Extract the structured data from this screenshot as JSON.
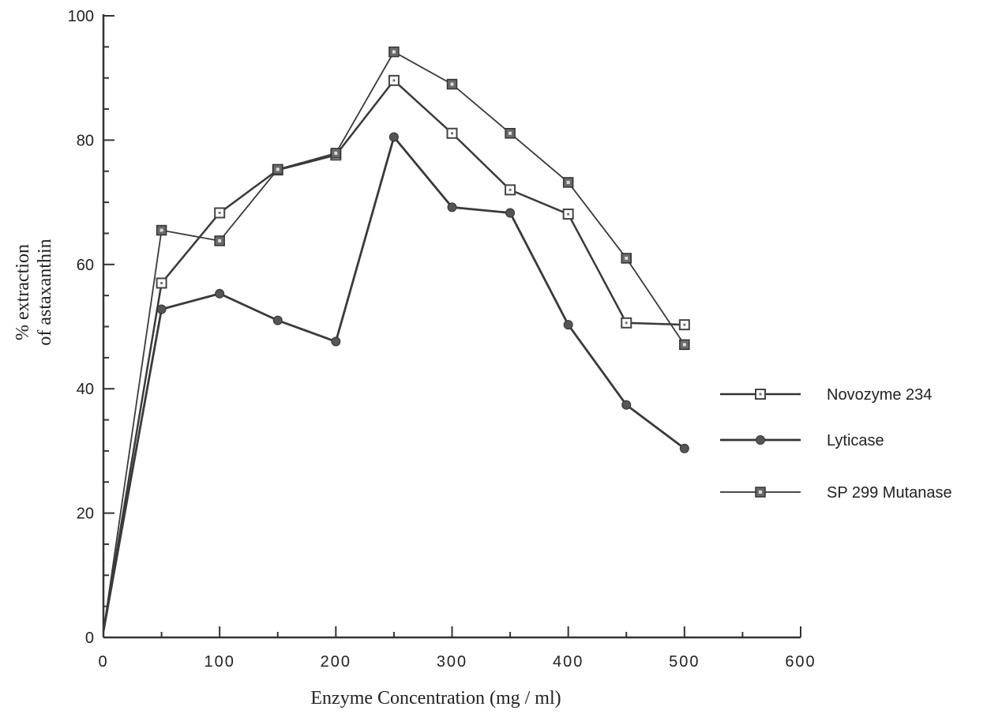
{
  "chart_data": {
    "type": "line",
    "title": "",
    "xlabel": "Enzyme Concentration (mg / ml)",
    "ylabel": [
      "% extraction",
      "of astaxanthin"
    ],
    "xlim": [
      0,
      600
    ],
    "ylim": [
      0,
      100
    ],
    "x_ticks": [
      "0",
      "100",
      "200",
      "300",
      "400",
      "500",
      "600"
    ],
    "y_ticks": [
      "0",
      "20",
      "40",
      "60",
      "80",
      "100"
    ],
    "grid": false,
    "legend_position": "right",
    "series": [
      {
        "name": "Novozyme 234",
        "marker": "open-square",
        "x": [
          0,
          50,
          100,
          150,
          200,
          250,
          300,
          350,
          400,
          450,
          500
        ],
        "y": [
          1,
          57,
          68.3,
          75.2,
          77.6,
          89.6,
          81.1,
          72,
          68.1,
          50.6,
          50.3
        ]
      },
      {
        "name": "Lyticase",
        "marker": "filled-diamond",
        "x": [
          0,
          50,
          100,
          150,
          200,
          250,
          300,
          350,
          400,
          450,
          500
        ],
        "y": [
          1,
          52.8,
          55.3,
          51,
          47.6,
          80.5,
          69.2,
          68.3,
          50.3,
          37.4,
          30.4
        ]
      },
      {
        "name": "SP 299 Mutanase",
        "marker": "dotted-square",
        "x": [
          0,
          50,
          100,
          150,
          200,
          250,
          300,
          350,
          400,
          450,
          500
        ],
        "y": [
          1,
          65.5,
          63.8,
          75.3,
          77.9,
          94.2,
          89,
          81.1,
          73.2,
          61,
          47.1
        ]
      }
    ]
  }
}
